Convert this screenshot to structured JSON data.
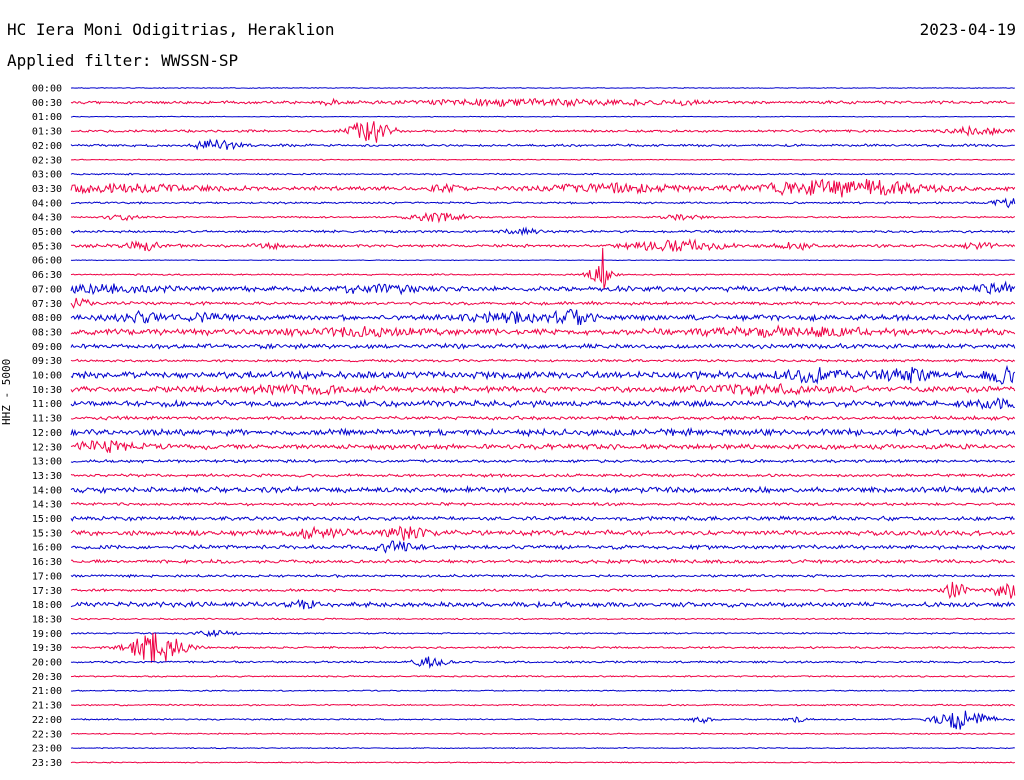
{
  "header": {
    "station": "HC Iera Moni Odigitrias, Heraklion",
    "date": "2023-04-19",
    "filter": "Applied filter: WWSSN-SP"
  },
  "chart_data": {
    "type": "line",
    "ylabel": "HHZ - 5000",
    "tick_labels": [
      "00:00",
      "00:30",
      "01:00",
      "01:30",
      "02:00",
      "02:30",
      "03:00",
      "03:30",
      "04:00",
      "04:30",
      "05:00",
      "05:30",
      "06:00",
      "06:30",
      "07:00",
      "07:30",
      "08:00",
      "08:30",
      "09:00",
      "09:30",
      "10:00",
      "10:30",
      "11:00",
      "11:30",
      "12:00",
      "12:30",
      "13:00",
      "13:30",
      "14:00",
      "14:30",
      "15:00",
      "15:30",
      "16:00",
      "16:30",
      "17:00",
      "17:30",
      "18:00",
      "18:30",
      "19:00",
      "19:30",
      "20:00",
      "20:30",
      "21:00",
      "21:30",
      "22:00",
      "22:30",
      "23:00",
      "23:30"
    ],
    "x_range_minutes": [
      0,
      30
    ],
    "colors": [
      "#0000cc",
      "#ee0044"
    ],
    "noise": [
      0.3,
      1.2,
      0.3,
      1.0,
      1.0,
      0.4,
      0.6,
      1.6,
      0.8,
      0.6,
      1.0,
      1.2,
      0.3,
      0.6,
      2.0,
      1.3,
      2.2,
      2.3,
      1.8,
      1.0,
      2.8,
      2.4,
      2.4,
      1.4,
      2.6,
      2.0,
      1.2,
      1.2,
      2.2,
      1.2,
      1.6,
      2.0,
      1.6,
      1.4,
      1.0,
      1.0,
      2.0,
      0.6,
      0.6,
      0.8,
      0.8,
      0.6,
      0.5,
      0.6,
      0.6,
      0.5,
      0.4,
      0.4
    ],
    "events": [
      {
        "row": 1,
        "min": 8.2,
        "amp": 3,
        "dur": 0.2
      },
      {
        "row": 1,
        "min": 15.0,
        "amp": 3,
        "dur": 3.5
      },
      {
        "row": 1,
        "min": 19.5,
        "amp": 2,
        "dur": 0.3
      },
      {
        "row": 3,
        "min": 9.5,
        "amp": 12,
        "dur": 0.6
      },
      {
        "row": 3,
        "min": 28.8,
        "amp": 4,
        "dur": 0.8
      },
      {
        "row": 4,
        "min": 4.6,
        "amp": 5,
        "dur": 0.7
      },
      {
        "row": 7,
        "min": 1.5,
        "amp": 3,
        "dur": 3
      },
      {
        "row": 7,
        "min": 11.9,
        "amp": 4,
        "dur": 0.4
      },
      {
        "row": 7,
        "min": 17.0,
        "amp": 4,
        "dur": 2
      },
      {
        "row": 7,
        "min": 24.5,
        "amp": 8,
        "dur": 2.5
      },
      {
        "row": 8,
        "min": 30.0,
        "amp": 5,
        "dur": 0.6
      },
      {
        "row": 9,
        "min": 1.6,
        "amp": 3,
        "dur": 0.5
      },
      {
        "row": 9,
        "min": 11.7,
        "amp": 4,
        "dur": 1
      },
      {
        "row": 9,
        "min": 19.4,
        "amp": 2,
        "dur": 0.8
      },
      {
        "row": 10,
        "min": 14.3,
        "amp": 3,
        "dur": 0.5
      },
      {
        "row": 11,
        "min": 2.3,
        "amp": 4,
        "dur": 0.6
      },
      {
        "row": 11,
        "min": 6.3,
        "amp": 3,
        "dur": 0.4
      },
      {
        "row": 11,
        "min": 19.3,
        "amp": 5,
        "dur": 1.5
      },
      {
        "row": 11,
        "min": 23.0,
        "amp": 3,
        "dur": 0.6
      },
      {
        "row": 11,
        "min": 28.8,
        "amp": 3,
        "dur": 0.5
      },
      {
        "row": 13,
        "min": 16.8,
        "amp": 8,
        "dur": 0.4
      },
      {
        "row": 13,
        "min": 16.9,
        "amp": 26,
        "dur": 0.08
      },
      {
        "row": 14,
        "min": 1.0,
        "amp": 3,
        "dur": 2
      },
      {
        "row": 14,
        "min": 9.8,
        "amp": 3,
        "dur": 1.5
      },
      {
        "row": 14,
        "min": 29.6,
        "amp": 5,
        "dur": 1
      },
      {
        "row": 15,
        "min": 0.2,
        "amp": 5,
        "dur": 0.4
      },
      {
        "row": 16,
        "min": 2.3,
        "amp": 4,
        "dur": 0.8
      },
      {
        "row": 16,
        "min": 4.4,
        "amp": 3,
        "dur": 0.6
      },
      {
        "row": 16,
        "min": 14.0,
        "amp": 4,
        "dur": 1.5
      },
      {
        "row": 16,
        "min": 15.9,
        "amp": 6,
        "dur": 0.5
      },
      {
        "row": 17,
        "min": 9.2,
        "amp": 3,
        "dur": 2
      },
      {
        "row": 17,
        "min": 22.8,
        "amp": 3,
        "dur": 3
      },
      {
        "row": 20,
        "min": 23.6,
        "amp": 6,
        "dur": 0.8
      },
      {
        "row": 20,
        "min": 26.5,
        "amp": 5,
        "dur": 0.8
      },
      {
        "row": 20,
        "min": 29.7,
        "amp": 7,
        "dur": 0.6
      },
      {
        "row": 21,
        "min": 7.2,
        "amp": 3,
        "dur": 1.5
      },
      {
        "row": 21,
        "min": 21.6,
        "amp": 4,
        "dur": 1.5
      },
      {
        "row": 22,
        "min": 29.5,
        "amp": 4,
        "dur": 0.8
      },
      {
        "row": 25,
        "min": 1.2,
        "amp": 4,
        "dur": 1.2
      },
      {
        "row": 31,
        "min": 7.9,
        "amp": 4,
        "dur": 1
      },
      {
        "row": 31,
        "min": 10.6,
        "amp": 5,
        "dur": 0.6
      },
      {
        "row": 32,
        "min": 10.2,
        "amp": 6,
        "dur": 0.6
      },
      {
        "row": 35,
        "min": 28.1,
        "amp": 10,
        "dur": 0.3
      },
      {
        "row": 35,
        "min": 29.9,
        "amp": 8,
        "dur": 0.6
      },
      {
        "row": 36,
        "min": 7.5,
        "amp": 4,
        "dur": 0.4
      },
      {
        "row": 38,
        "min": 4.5,
        "amp": 3,
        "dur": 0.6
      },
      {
        "row": 39,
        "min": 2.7,
        "amp": 16,
        "dur": 0.8
      },
      {
        "row": 40,
        "min": 11.4,
        "amp": 5,
        "dur": 0.5
      },
      {
        "row": 44,
        "min": 20.0,
        "amp": 3,
        "dur": 0.3
      },
      {
        "row": 44,
        "min": 23.0,
        "amp": 3,
        "dur": 0.3
      },
      {
        "row": 44,
        "min": 28.3,
        "amp": 10,
        "dur": 0.8
      }
    ]
  }
}
